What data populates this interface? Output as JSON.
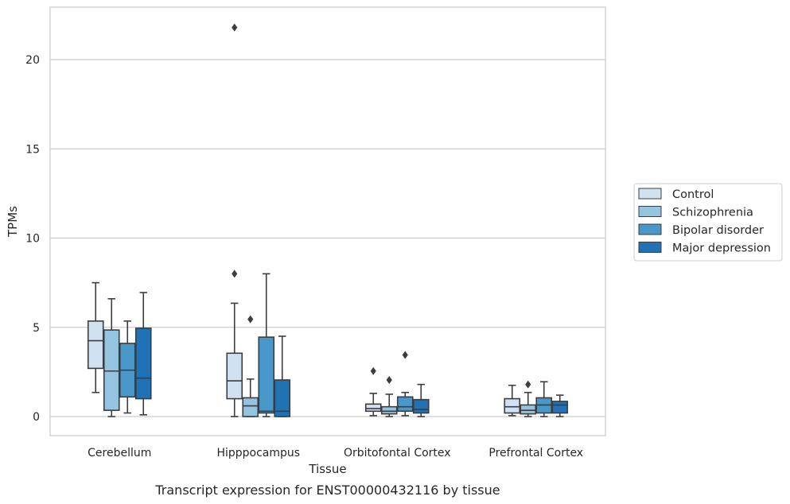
{
  "chart_data": {
    "type": "box",
    "title": "",
    "caption": "Transcript expression for ENST00000432116 by tissue",
    "xlabel": "Tissue",
    "ylabel": "TPMs",
    "ylim": [
      -1.1,
      23
    ],
    "yticks": [
      0,
      5,
      10,
      15,
      20
    ],
    "grid": "horizontal",
    "legend_position": "right",
    "categories": [
      "Cerebellum",
      "Hipppocampus",
      "Orbitofontal Cortex",
      "Prefrontal Cortex"
    ],
    "series": [
      {
        "name": "Control",
        "color": "#d0e1f2",
        "boxes": [
          {
            "whislo": 1.35,
            "q1": 2.7,
            "med": 4.25,
            "q3": 5.35,
            "whishi": 7.5,
            "fliers": []
          },
          {
            "whislo": 0.0,
            "q1": 1.0,
            "med": 2.0,
            "q3": 3.55,
            "whishi": 6.35,
            "fliers": [
              8.0,
              21.8
            ]
          },
          {
            "whislo": 0.05,
            "q1": 0.3,
            "med": 0.45,
            "q3": 0.7,
            "whishi": 1.3,
            "fliers": [
              2.55
            ]
          },
          {
            "whislo": 0.05,
            "q1": 0.2,
            "med": 0.55,
            "q3": 1.0,
            "whishi": 1.75,
            "fliers": []
          }
        ]
      },
      {
        "name": "Schizophrenia",
        "color": "#94c4df",
        "boxes": [
          {
            "whislo": 0.0,
            "q1": 0.35,
            "med": 2.55,
            "q3": 4.85,
            "whishi": 6.6,
            "fliers": []
          },
          {
            "whislo": 0.0,
            "q1": 0.0,
            "med": 0.6,
            "q3": 1.05,
            "whishi": 2.1,
            "fliers": [
              5.45
            ]
          },
          {
            "whislo": 0.0,
            "q1": 0.15,
            "med": 0.3,
            "q3": 0.55,
            "whishi": 1.25,
            "fliers": [
              2.05
            ]
          },
          {
            "whislo": 0.0,
            "q1": 0.15,
            "med": 0.35,
            "q3": 0.65,
            "whishi": 1.35,
            "fliers": [
              1.8
            ]
          }
        ]
      },
      {
        "name": "Bipolar disorder",
        "color": "#4a98c9",
        "boxes": [
          {
            "whislo": 0.2,
            "q1": 1.1,
            "med": 2.6,
            "q3": 4.1,
            "whishi": 5.35,
            "fliers": []
          },
          {
            "whislo": 0.0,
            "q1": 0.2,
            "med": 0.3,
            "q3": 4.45,
            "whishi": 8.0,
            "fliers": []
          },
          {
            "whislo": 0.05,
            "q1": 0.3,
            "med": 0.55,
            "q3": 1.1,
            "whishi": 1.35,
            "fliers": [
              3.45
            ]
          },
          {
            "whislo": 0.0,
            "q1": 0.2,
            "med": 0.65,
            "q3": 1.05,
            "whishi": 1.95,
            "fliers": []
          }
        ]
      },
      {
        "name": "Major depression",
        "color": "#2171b5",
        "boxes": [
          {
            "whislo": 0.1,
            "q1": 1.0,
            "med": 2.15,
            "q3": 4.95,
            "whishi": 6.95,
            "fliers": []
          },
          {
            "whislo": 0.0,
            "q1": 0.0,
            "med": 0.3,
            "q3": 2.05,
            "whishi": 4.5,
            "fliers": []
          },
          {
            "whislo": 0.0,
            "q1": 0.2,
            "med": 0.4,
            "q3": 0.95,
            "whishi": 1.8,
            "fliers": []
          },
          {
            "whislo": 0.0,
            "q1": 0.2,
            "med": 0.65,
            "q3": 0.85,
            "whishi": 1.2,
            "fliers": []
          }
        ]
      }
    ]
  }
}
